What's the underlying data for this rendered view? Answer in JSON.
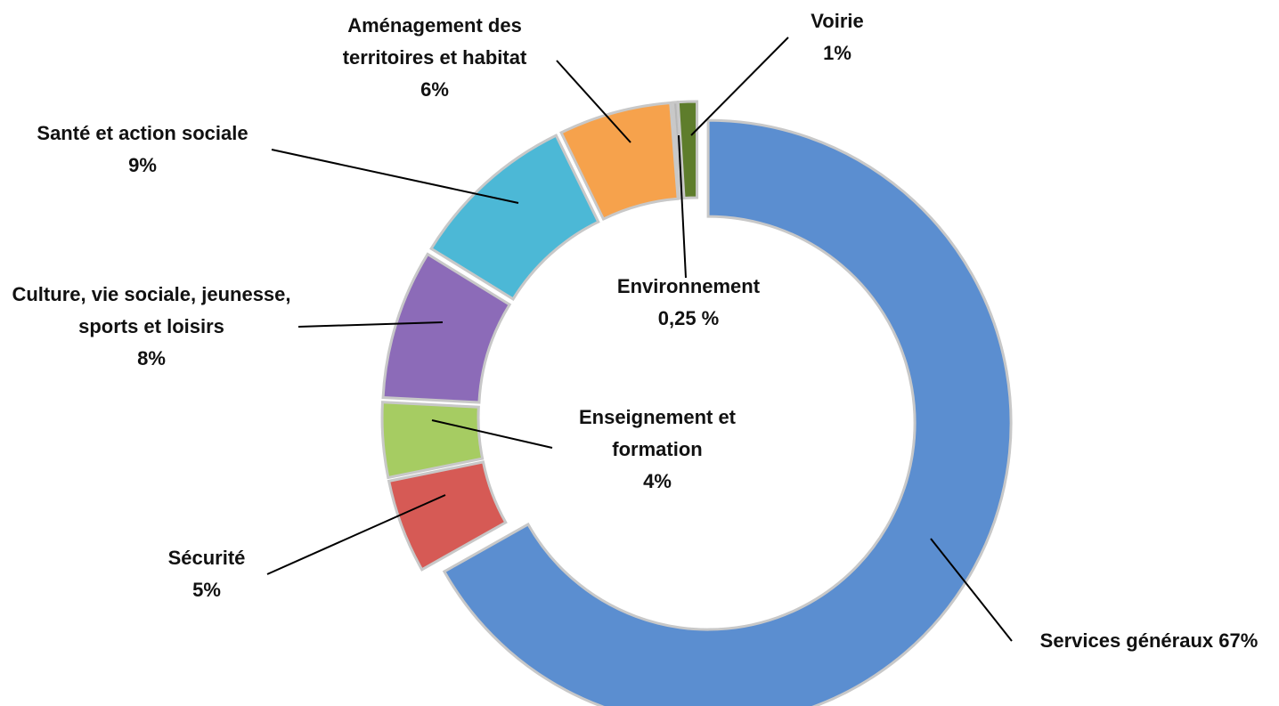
{
  "chart_data": {
    "type": "donut",
    "categories": [
      "Services généraux",
      "Sécurité",
      "Enseignement et formation",
      "Culture, vie sociale, jeunesse, sports et loisirs",
      "Santé et action sociale",
      "Aménagement des territoires et habitat",
      "Environnement",
      "Voirie"
    ],
    "values": [
      67,
      5,
      4,
      8,
      9,
      6,
      0.25,
      1
    ],
    "value_labels": [
      "67%",
      "5%",
      "4%",
      "8%",
      "9%",
      "6%",
      "0,25 %",
      "1%"
    ],
    "colors": [
      "#5b8ed0",
      "#d65a55",
      "#a6cc62",
      "#8c6bb8",
      "#4cb8d6",
      "#f6a24c",
      "#b8b8b8",
      "#5e7d2c"
    ]
  }
}
